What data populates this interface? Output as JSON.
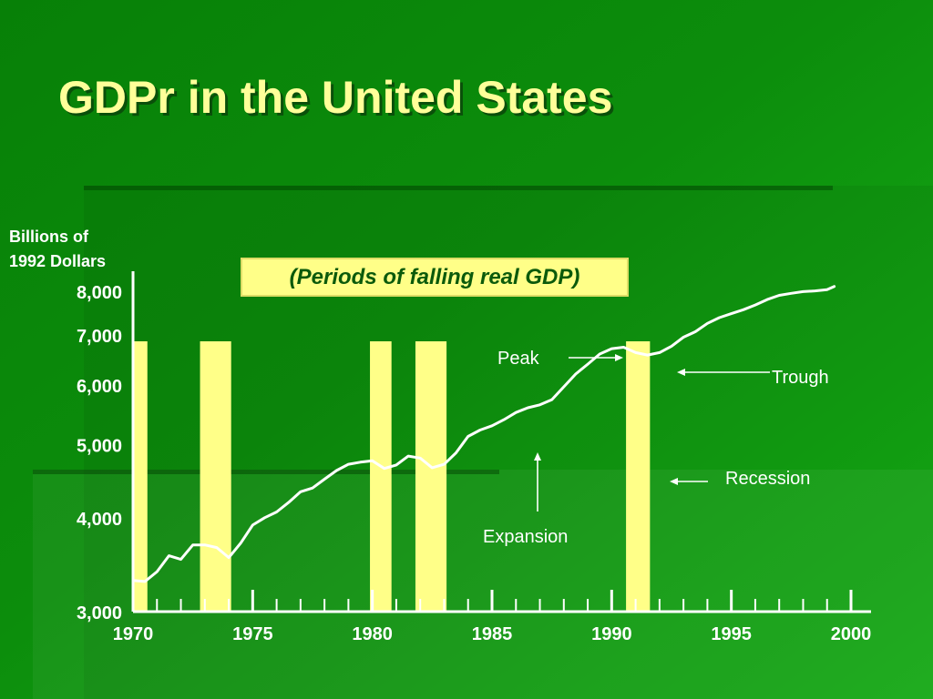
{
  "page": {
    "title": "GDPr in the United States",
    "ylabel_line1": "Billions of",
    "ylabel_line2": "1992 Dollars",
    "legend_text": "(Periods of falling real GDP)"
  },
  "chart_data": {
    "type": "line",
    "title": "GDPr in the United States",
    "ylabel": "Billions of 1992 Dollars",
    "xlabel": "",
    "xlim": [
      1970,
      2000
    ],
    "ylim": [
      3000,
      8000
    ],
    "y_scale": "log",
    "x_ticks": [
      1970,
      1975,
      1980,
      1985,
      1990,
      1995,
      2000
    ],
    "x_tick_labels": [
      "1970",
      "1975",
      "1980",
      "1985",
      "1990",
      "1995",
      "2000"
    ],
    "y_ticks": [
      3000,
      4000,
      5000,
      6000,
      7000,
      8000
    ],
    "y_tick_labels": [
      "3,000",
      "4,000",
      "5,000",
      "6,000",
      "7,000",
      "8,000"
    ],
    "legend": "(Periods of falling real GDP)",
    "line_color": "#ffffff",
    "recession_color": "#ffff88",
    "recessions": [
      {
        "start": 1970.0,
        "end": 1970.6
      },
      {
        "start": 1972.8,
        "end": 1974.1
      },
      {
        "start": 1979.9,
        "end": 1980.8
      },
      {
        "start": 1981.8,
        "end": 1983.1
      },
      {
        "start": 1990.6,
        "end": 1991.6
      }
    ],
    "series": [
      {
        "x": [
          1970.0,
          1970.5,
          1971.0,
          1971.5,
          1972.0,
          1972.5,
          1973.0,
          1973.5,
          1974.0,
          1974.5,
          1975.0,
          1975.5,
          1976.0,
          1976.5,
          1977.0,
          1977.5,
          1978.0,
          1978.5,
          1979.0,
          1979.5,
          1980.0,
          1980.5,
          1981.0,
          1981.5,
          1982.0,
          1982.5,
          1983.0,
          1983.5,
          1984.0,
          1984.5,
          1985.0,
          1985.5,
          1986.0,
          1986.5,
          1987.0,
          1987.5,
          1988.0,
          1988.5,
          1989.0,
          1989.5,
          1990.0,
          1990.5,
          1991.0,
          1991.5,
          1992.0,
          1992.5,
          1993.0,
          1993.5,
          1994.0,
          1994.5,
          1995.0,
          1995.5,
          1996.0,
          1996.5,
          1997.0,
          1997.5,
          1998.0,
          1998.5,
          1999.0,
          1999.3
        ],
        "y": [
          3300,
          3290,
          3390,
          3560,
          3520,
          3680,
          3680,
          3650,
          3540,
          3700,
          3910,
          4000,
          4070,
          4190,
          4330,
          4380,
          4500,
          4620,
          4710,
          4740,
          4760,
          4650,
          4700,
          4830,
          4800,
          4660,
          4710,
          4880,
          5130,
          5230,
          5300,
          5400,
          5520,
          5600,
          5650,
          5740,
          5970,
          6210,
          6400,
          6600,
          6710,
          6740,
          6630,
          6580,
          6630,
          6760,
          6950,
          7070,
          7250,
          7380,
          7470,
          7560,
          7670,
          7800,
          7900,
          7950,
          7990,
          8010,
          8040,
          8120
        ]
      }
    ]
  },
  "annotations": {
    "peak": "Peak",
    "trough": "Trough",
    "recession": "Recession",
    "expansion": "Expansion"
  }
}
